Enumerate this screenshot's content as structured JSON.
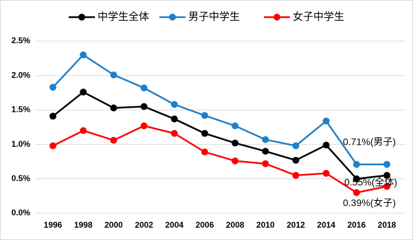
{
  "chart_data": {
    "type": "line",
    "categories": [
      "1996",
      "1998",
      "2000",
      "2002",
      "2004",
      "2006",
      "2008",
      "2010",
      "2012",
      "2014",
      "2016",
      "2018"
    ],
    "series": [
      {
        "name": "中学生全体",
        "color": "#000000",
        "values": [
          1.41,
          1.76,
          1.53,
          1.55,
          1.37,
          1.16,
          1.02,
          0.9,
          0.77,
          0.99,
          0.5,
          0.55
        ],
        "value_labels": [
          null,
          null,
          null,
          null,
          null,
          null,
          null,
          null,
          null,
          null,
          null,
          "0.55%(全体)"
        ]
      },
      {
        "name": "男子中学生",
        "color": "#1f7fc8",
        "values": [
          1.83,
          2.3,
          2.01,
          1.82,
          1.58,
          1.42,
          1.27,
          1.07,
          0.98,
          1.34,
          0.71,
          0.71
        ],
        "value_labels": [
          null,
          null,
          null,
          null,
          null,
          null,
          null,
          null,
          null,
          null,
          null,
          "0.71%(男子)"
        ]
      },
      {
        "name": "女子中学生",
        "color": "#ff0000",
        "values": [
          0.98,
          1.2,
          1.06,
          1.27,
          1.16,
          0.89,
          0.76,
          0.72,
          0.55,
          0.58,
          0.3,
          0.39
        ],
        "value_labels": [
          null,
          null,
          null,
          null,
          null,
          null,
          null,
          null,
          null,
          null,
          null,
          "0.39%(女子)"
        ]
      }
    ],
    "ylim": [
      0,
      2.5
    ],
    "yticks": [
      {
        "value": 0,
        "label": "0.0%"
      },
      {
        "value": 0.5,
        "label": "0.5%"
      },
      {
        "value": 1,
        "label": "1.0%"
      },
      {
        "value": 1.5,
        "label": "1.5%"
      },
      {
        "value": 2,
        "label": "2.0%"
      },
      {
        "value": 2.5,
        "label": "2.5%"
      }
    ],
    "grid": true,
    "legend": "top"
  }
}
